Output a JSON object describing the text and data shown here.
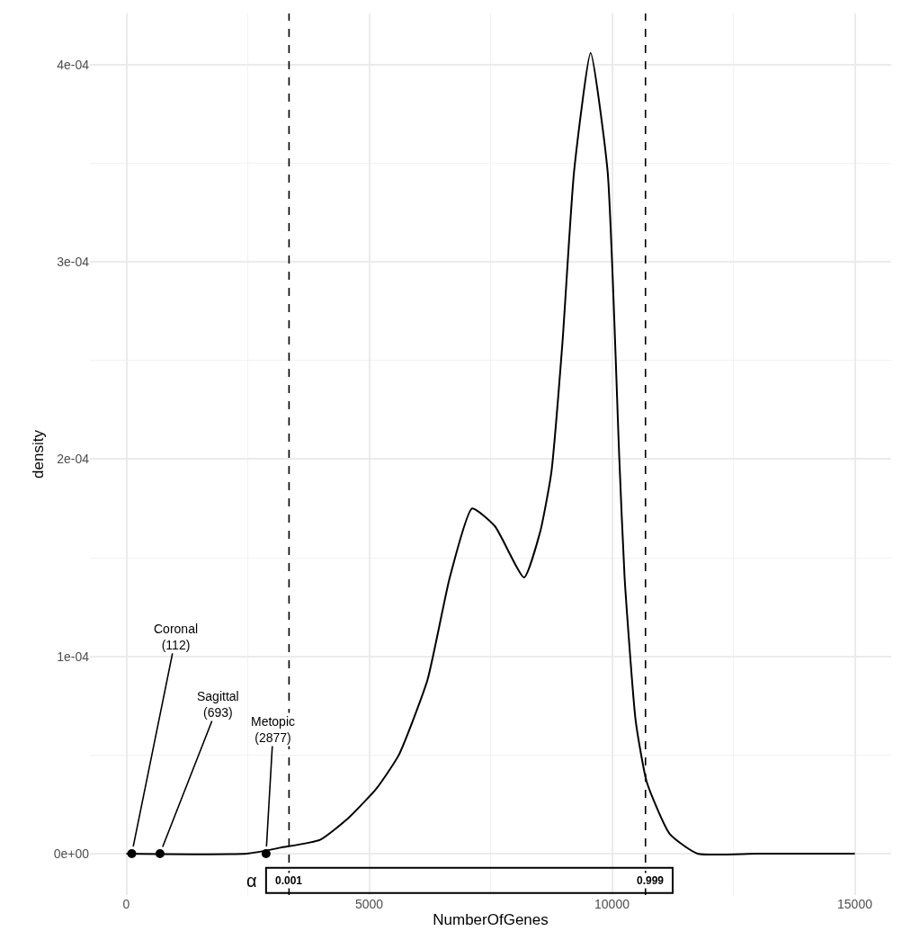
{
  "chart_data": {
    "type": "line",
    "xlabel": "NumberOfGenes",
    "ylabel": "density",
    "xlim": [
      -750,
      15750
    ],
    "ylim": [
      -2.1e-05,
      0.000426
    ],
    "xticks": [
      0,
      5000,
      10000,
      15000
    ],
    "yticks": [
      {
        "value": 0,
        "label": "0e+00"
      },
      {
        "value": 0.0001,
        "label": "1e-04"
      },
      {
        "value": 0.0002,
        "label": "2e-04"
      },
      {
        "value": 0.0003,
        "label": "3e-04"
      },
      {
        "value": 0.0004,
        "label": "4e-04"
      }
    ],
    "grid": true,
    "series": [
      {
        "color": "#000000",
        "marker": "none",
        "line_style": "solid",
        "x": [
          0,
          2480,
          3175,
          3990,
          4570,
          5150,
          5610,
          6200,
          6660,
          7120,
          7590,
          8190,
          8520,
          8750,
          8980,
          9220,
          9560,
          9910,
          10150,
          10260,
          10490,
          10720,
          11190,
          11760,
          13000,
          15000
        ],
        "values": [
          0,
          0,
          3e-06,
          7e-06,
          1.8e-05,
          3.3e-05,
          5e-05,
          8.8e-05,
          0.00014,
          0.000175,
          0.000166,
          0.00014,
          0.000163,
          0.000193,
          0.000259,
          0.000346,
          0.000406,
          0.000346,
          0.000201,
          0.00014,
          6.7e-05,
          3.6e-05,
          1e-05,
          0,
          0,
          0
        ]
      },
      {
        "type": "scatter",
        "color": "#000000",
        "marker": "circle",
        "x": [
          112,
          693,
          2877
        ],
        "values": [
          0,
          0,
          0
        ]
      }
    ],
    "ref_lines": [
      {
        "axis": "x",
        "value": 3350,
        "line_style": "dashed",
        "color": "#000000"
      },
      {
        "axis": "x",
        "value": 10690,
        "line_style": "dashed",
        "color": "#000000"
      }
    ],
    "annotations": [
      {
        "text": "Coronal\n(112)",
        "x": 112,
        "y": 0
      },
      {
        "text": "Sagittal\n(693)",
        "x": 693,
        "y": 0
      },
      {
        "text": "Metopic\n(2877)",
        "x": 2877,
        "y": 0
      },
      "α",
      "0.001",
      "0.999"
    ]
  }
}
